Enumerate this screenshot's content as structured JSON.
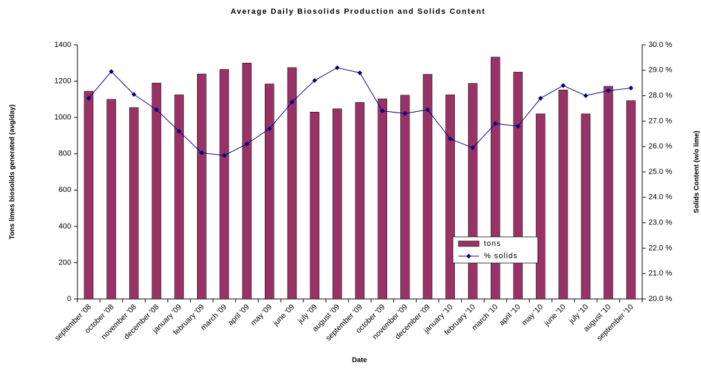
{
  "chart_data": {
    "type": "bar",
    "title": "Average Daily Biosolids Production and Solids Content",
    "x_label": "Date",
    "y_label": "Tons limes biosolids generated (avg/day)",
    "y2_label": "Solids Content (w/o lime)",
    "categories": [
      "september '08",
      "october '08",
      "november '08",
      "december '08",
      "january '09",
      "february '09",
      "march '09",
      "april '09",
      "may '09",
      "june '09",
      "july '09",
      "august '09",
      "september '09",
      "october '09",
      "november '09",
      "december '09",
      "january '10",
      "february '10",
      "march '10",
      "april '10",
      "may '10",
      "june '10",
      "july '10",
      "august '10",
      "september '10"
    ],
    "series": [
      {
        "name": "tons",
        "type": "bar",
        "color": "#993366",
        "values": [
          1145,
          1100,
          1055,
          1190,
          1125,
          1240,
          1265,
          1300,
          1185,
          1275,
          1030,
          1048,
          1083,
          1103,
          1123,
          1238,
          1125,
          1188,
          1333,
          1250,
          1020,
          1152,
          1020,
          1172,
          1093
        ]
      },
      {
        "name": "% solids",
        "type": "line",
        "axis": "y2",
        "color": "#000080",
        "values": [
          27.9,
          28.95,
          28.05,
          27.45,
          26.6,
          25.75,
          25.65,
          26.1,
          26.7,
          27.75,
          28.6,
          29.1,
          28.9,
          27.4,
          27.3,
          27.45,
          26.3,
          25.95,
          26.9,
          26.8,
          27.9,
          28.4,
          28.0,
          28.2,
          28.3
        ]
      }
    ],
    "ylim": [
      0,
      1400
    ],
    "yticks": [
      0,
      200,
      400,
      600,
      800,
      1000,
      1200,
      1400
    ],
    "y2lim": [
      20,
      30
    ],
    "y2ticks": [
      {
        "value": 20,
        "label": "20.0 %"
      },
      {
        "value": 21,
        "label": "21.0 %"
      },
      {
        "value": 22,
        "label": "22.0 %"
      },
      {
        "value": 23,
        "label": "23.0 %"
      },
      {
        "value": 24,
        "label": "24.0 %"
      },
      {
        "value": 25,
        "label": "25.0 %"
      },
      {
        "value": 26,
        "label": "26.0 %"
      },
      {
        "value": 27,
        "label": "27.0 %"
      },
      {
        "value": 28,
        "label": "28.0 %"
      },
      {
        "value": 29,
        "label": "29.0 %"
      },
      {
        "value": 30,
        "label": "30.0 %"
      }
    ],
    "grid": false,
    "legend": "lower right"
  }
}
